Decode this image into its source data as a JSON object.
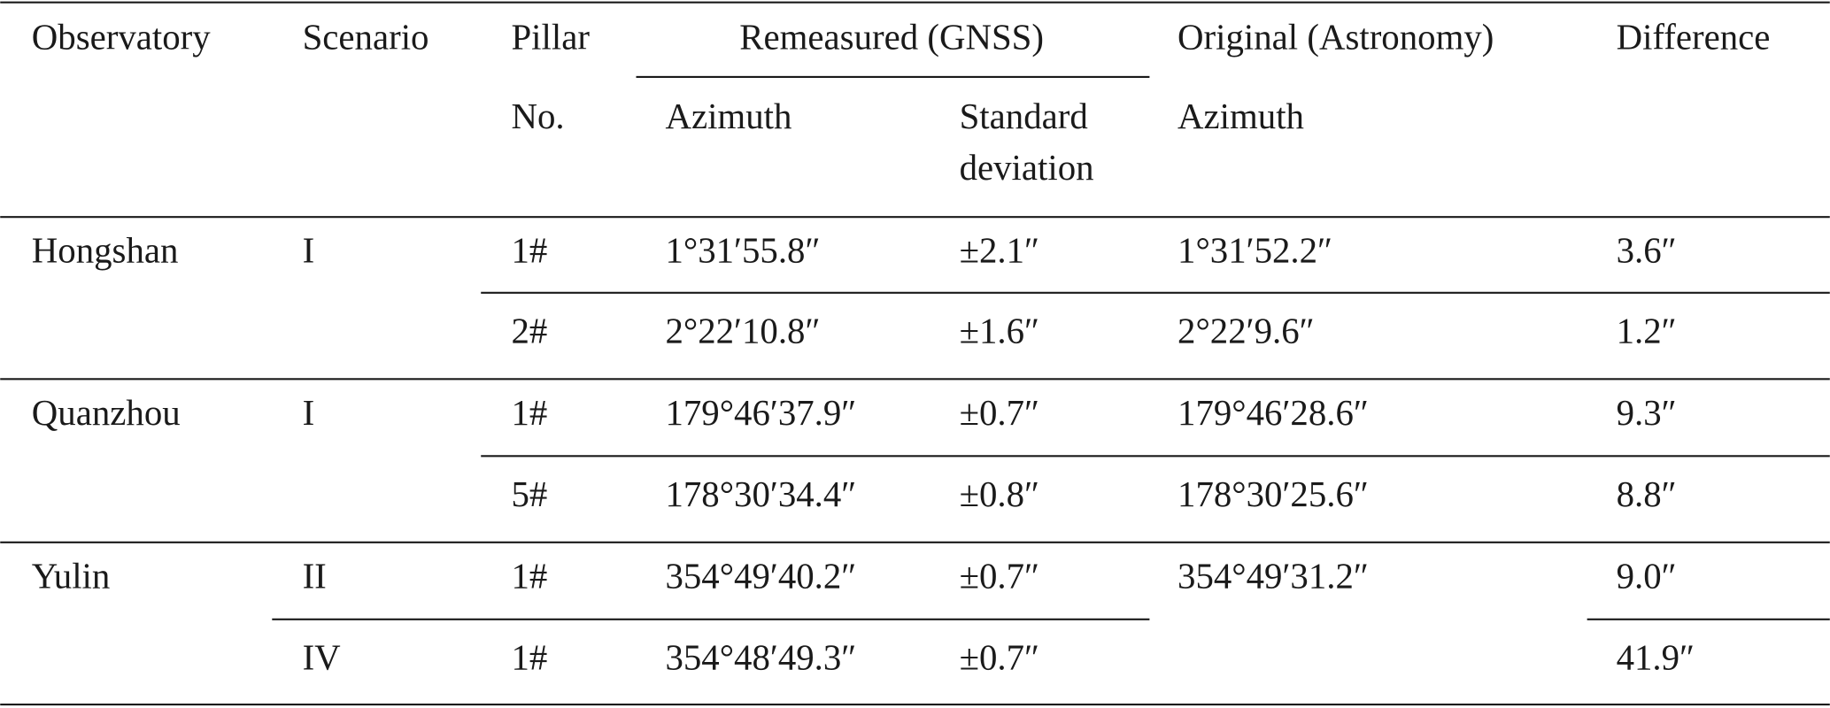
{
  "header": {
    "row1": {
      "observatory": "Observatory",
      "scenario": "Scenario",
      "pillar": "Pillar",
      "remeasured": "Remeasured (GNSS)",
      "original": "Original (Astronomy)",
      "difference": "Difference"
    },
    "row2": {
      "pillar": "No.",
      "azimuth": "Azimuth",
      "standard_deviation": [
        "Standard",
        "deviation"
      ],
      "original_azimuth": "Azimuth"
    }
  },
  "rows": [
    {
      "observatory": "Hongshan",
      "scenario": "I",
      "pillar": "1#",
      "azimuth": "1°31′55.8″",
      "standard_deviation": "±2.1″",
      "original": "1°31′52.2″",
      "difference": "3.6″"
    },
    {
      "pillar": "2#",
      "azimuth": "2°22′10.8″",
      "standard_deviation": "±1.6″",
      "original": "2°22′9.6″",
      "difference": "1.2″"
    },
    {
      "observatory": "Quanzhou",
      "scenario": "I",
      "pillar": "1#",
      "azimuth": "179°46′37.9″",
      "standard_deviation": "±0.7″",
      "original": "179°46′28.6″",
      "difference": "9.3″"
    },
    {
      "pillar": "5#",
      "azimuth": "178°30′34.4″",
      "standard_deviation": "±0.8″",
      "original": "178°30′25.6″",
      "difference": "8.8″"
    },
    {
      "observatory": "Yulin",
      "scenario": "II",
      "pillar": "1#",
      "azimuth": "354°49′40.2″",
      "standard_deviation": "±0.7″",
      "original": "354°49′31.2″",
      "difference": "9.0″"
    },
    {
      "scenario": "IV",
      "pillar": "1#",
      "azimuth": "354°48′49.3″",
      "standard_deviation": "±0.7″",
      "difference": "41.9″"
    }
  ]
}
